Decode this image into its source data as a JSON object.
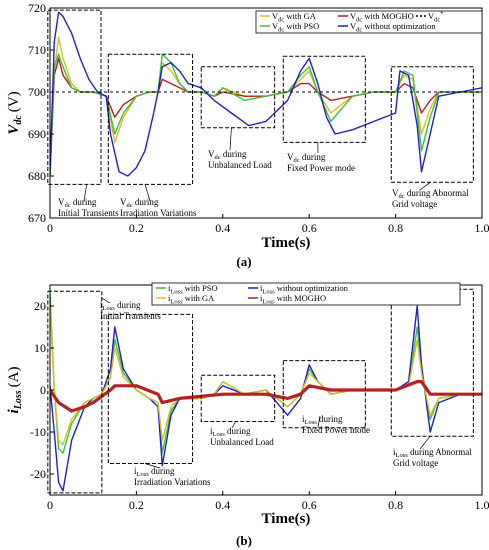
{
  "chart_data": [
    {
      "panel_label": "(a)",
      "type": "line",
      "ylabel": "V",
      "ylabel_sub": "dc",
      "ylabel_unit": "(V)",
      "xlabel": "Time(s)",
      "xlim": [
        0,
        1
      ],
      "ylim": [
        670,
        720
      ],
      "xticks": [
        "0",
        "0.2",
        "0.4",
        "0.6",
        "0.8",
        "1.0"
      ],
      "xtick_values": [
        0,
        0.2,
        0.4,
        0.6,
        0.8,
        1.0
      ],
      "yticks": [
        "670",
        "680",
        "690",
        "700",
        "710",
        "720"
      ],
      "ytick_values": [
        670,
        680,
        690,
        700,
        710,
        720
      ],
      "legend_position": "top-right",
      "series": [
        {
          "name": "V_dc with GA",
          "legend_main": "V",
          "legend_sub": "dc",
          "legend_rest": " with GA",
          "color": "#d4c21e",
          "x": [
            0,
            0.01,
            0.02,
            0.03,
            0.05,
            0.07,
            0.1,
            0.13,
            0.15,
            0.17,
            0.2,
            0.23,
            0.25,
            0.26,
            0.28,
            0.3,
            0.32,
            0.35,
            0.38,
            0.4,
            0.45,
            0.5,
            0.55,
            0.58,
            0.6,
            0.62,
            0.65,
            0.7,
            0.75,
            0.8,
            0.82,
            0.84,
            0.86,
            0.88,
            0.9,
            0.95,
            1.0
          ],
          "y": [
            680,
            705,
            713,
            708,
            702,
            700,
            700,
            699,
            688,
            694,
            699,
            700,
            700,
            707,
            705,
            702,
            700,
            700,
            699,
            701,
            699,
            699,
            700,
            703,
            705,
            700,
            695,
            699,
            700,
            700,
            704,
            703,
            690,
            696,
            700,
            700,
            700
          ]
        },
        {
          "name": "V_dc with MOGHO",
          "legend_main": "V",
          "legend_sub": "dc",
          "legend_rest": " with MOGHO",
          "color": "#b52020",
          "x": [
            0,
            0.01,
            0.02,
            0.03,
            0.05,
            0.07,
            0.1,
            0.13,
            0.15,
            0.17,
            0.2,
            0.23,
            0.25,
            0.26,
            0.28,
            0.3,
            0.32,
            0.35,
            0.38,
            0.4,
            0.45,
            0.5,
            0.55,
            0.58,
            0.6,
            0.62,
            0.65,
            0.7,
            0.75,
            0.8,
            0.82,
            0.84,
            0.86,
            0.88,
            0.9,
            0.95,
            1.0
          ],
          "y": [
            680,
            704,
            708,
            704,
            701,
            700,
            700,
            699,
            694,
            697,
            699,
            700,
            700,
            703,
            702,
            701,
            700,
            700,
            699,
            700,
            699,
            699,
            700,
            702,
            702,
            700,
            698,
            699,
            700,
            700,
            702,
            701,
            695,
            698,
            700,
            700,
            700
          ]
        },
        {
          "name": "V_dc with PSO",
          "legend_main": "V",
          "legend_sub": "dc",
          "legend_rest": " with PSO",
          "color": "#3fbf3f",
          "x": [
            0,
            0.01,
            0.02,
            0.03,
            0.05,
            0.07,
            0.1,
            0.13,
            0.15,
            0.17,
            0.2,
            0.23,
            0.25,
            0.26,
            0.28,
            0.3,
            0.32,
            0.35,
            0.38,
            0.4,
            0.45,
            0.5,
            0.55,
            0.58,
            0.6,
            0.62,
            0.65,
            0.7,
            0.75,
            0.8,
            0.82,
            0.84,
            0.86,
            0.88,
            0.9,
            0.95,
            1.0
          ],
          "y": [
            680,
            706,
            709,
            706,
            701,
            700,
            700,
            699,
            690,
            695,
            699,
            700,
            700,
            709,
            707,
            702,
            700,
            700,
            699,
            701,
            698,
            699,
            700,
            704,
            706,
            700,
            693,
            699,
            700,
            700,
            705,
            704,
            686,
            694,
            700,
            700,
            700
          ]
        },
        {
          "name": "V_dc without optimization",
          "legend_main": "V",
          "legend_sub": "dc",
          "legend_rest": " without optimization",
          "color": "#2020c8",
          "x": [
            0,
            0.01,
            0.02,
            0.03,
            0.05,
            0.07,
            0.09,
            0.11,
            0.13,
            0.14,
            0.16,
            0.18,
            0.2,
            0.22,
            0.24,
            0.25,
            0.26,
            0.28,
            0.3,
            0.32,
            0.35,
            0.38,
            0.42,
            0.46,
            0.5,
            0.55,
            0.58,
            0.6,
            0.62,
            0.64,
            0.66,
            0.7,
            0.75,
            0.8,
            0.81,
            0.83,
            0.85,
            0.86,
            0.88,
            0.9,
            0.95,
            1.0
          ],
          "y": [
            681,
            712,
            719,
            718,
            714,
            708,
            703,
            700,
            699,
            690,
            681,
            680,
            682,
            686,
            695,
            700,
            706,
            707,
            705,
            702,
            701,
            698,
            695,
            692,
            693,
            698,
            705,
            708,
            702,
            694,
            690,
            691,
            693,
            695,
            705,
            704,
            692,
            681,
            690,
            699,
            700,
            701
          ]
        },
        {
          "name": "V_dc*",
          "legend_main": "V",
          "legend_sub": "dc",
          "legend_sup": "*",
          "legend_rest": "",
          "color": "#000000",
          "dashed": true,
          "x": [
            0,
            1.0
          ],
          "y": [
            700,
            700
          ]
        }
      ],
      "annotations": [
        {
          "lines": [
            "V_dc during",
            "Initial Transients"
          ]
        },
        {
          "lines": [
            "V_dc during",
            "Irradiation Variations"
          ]
        },
        {
          "lines": [
            "V_dc during",
            "Unbalanced Load"
          ]
        },
        {
          "lines": [
            "V_dc during",
            "Fixed Power mode"
          ]
        },
        {
          "lines": [
            "V_dc during Abnormal",
            "Grid voltage"
          ]
        }
      ]
    },
    {
      "panel_label": "(b)",
      "type": "line",
      "ylabel": "i",
      "ylabel_sub": "Loss",
      "ylabel_unit": "(A)",
      "xlabel": "Time(s)",
      "xlim": [
        0,
        1
      ],
      "ylim": [
        -25,
        25
      ],
      "xticks": [
        "0",
        "0.2",
        "0.4",
        "0.6",
        "0.8",
        "1.0"
      ],
      "xtick_values": [
        0,
        0.2,
        0.4,
        0.6,
        0.8,
        1.0
      ],
      "yticks": [
        "-20",
        "-10",
        "0",
        "10",
        "20"
      ],
      "ytick_values": [
        -20,
        -10,
        0,
        10,
        20
      ],
      "legend_position": "top-right",
      "series": [
        {
          "name": "i_Loss with PSO",
          "legend_main": "i",
          "legend_sub": "Loss",
          "legend_rest": " with PSO",
          "color": "#3fbf3f",
          "x": [
            0,
            0.01,
            0.02,
            0.03,
            0.05,
            0.08,
            0.1,
            0.12,
            0.14,
            0.15,
            0.17,
            0.2,
            0.23,
            0.25,
            0.26,
            0.28,
            0.3,
            0.35,
            0.38,
            0.4,
            0.45,
            0.5,
            0.55,
            0.58,
            0.6,
            0.62,
            0.65,
            0.7,
            0.75,
            0.8,
            0.83,
            0.85,
            0.86,
            0.88,
            0.9,
            0.95,
            1.0
          ],
          "y": [
            23,
            0,
            -14,
            -15,
            -8,
            -3,
            -2,
            -1,
            3,
            12,
            4,
            0,
            -2,
            -3,
            -15,
            -5,
            -2,
            -2,
            -1,
            2,
            -1,
            0,
            -4,
            -1,
            5,
            2,
            -1,
            0,
            0,
            0,
            1,
            15,
            5,
            -7,
            -2,
            -1,
            -1
          ]
        },
        {
          "name": "i_Loss without optimization",
          "legend_main": "i",
          "legend_sub": "Loss",
          "legend_rest": " without optimization",
          "color": "#2020c8",
          "x": [
            0,
            0.01,
            0.02,
            0.03,
            0.05,
            0.08,
            0.1,
            0.12,
            0.14,
            0.15,
            0.17,
            0.2,
            0.23,
            0.25,
            0.26,
            0.28,
            0.3,
            0.35,
            0.38,
            0.4,
            0.45,
            0.5,
            0.55,
            0.58,
            0.6,
            0.62,
            0.65,
            0.7,
            0.75,
            0.8,
            0.83,
            0.85,
            0.86,
            0.88,
            0.9,
            0.95,
            1.0
          ],
          "y": [
            1,
            -10,
            -22,
            -24,
            -12,
            -4,
            -2,
            -1,
            5,
            15,
            5,
            0,
            -2,
            -4,
            -18,
            -6,
            -2,
            -2,
            -1,
            1,
            -1,
            0,
            -6,
            -2,
            6,
            2,
            -1,
            0,
            0,
            0,
            2,
            20,
            6,
            -10,
            -3,
            -1,
            -1
          ]
        },
        {
          "name": "i_Loss with GA",
          "legend_main": "i",
          "legend_sub": "Loss",
          "legend_rest": " with GA",
          "color": "#d4c21e",
          "x": [
            0,
            0.01,
            0.02,
            0.03,
            0.05,
            0.08,
            0.1,
            0.12,
            0.14,
            0.15,
            0.17,
            0.2,
            0.23,
            0.25,
            0.26,
            0.28,
            0.3,
            0.35,
            0.38,
            0.4,
            0.45,
            0.5,
            0.55,
            0.58,
            0.6,
            0.62,
            0.65,
            0.7,
            0.75,
            0.8,
            0.83,
            0.85,
            0.86,
            0.88,
            0.9,
            0.95,
            1.0
          ],
          "y": [
            20,
            0,
            -12,
            -13,
            -7,
            -3,
            -2,
            -1,
            3,
            10,
            3,
            0,
            -2,
            -3,
            -12,
            -4,
            -2,
            -2,
            -1,
            2,
            -1,
            0,
            -4,
            -1,
            4,
            2,
            -1,
            0,
            0,
            0,
            1,
            12,
            4,
            -6,
            -2,
            -1,
            -1
          ]
        },
        {
          "name": "i_Loss with MOGHO",
          "legend_main": "i",
          "legend_sub": "Loss",
          "legend_rest": " with MOGHO",
          "color": "#b52020",
          "x": [
            0,
            0.02,
            0.05,
            0.08,
            0.1,
            0.14,
            0.15,
            0.2,
            0.25,
            0.26,
            0.3,
            0.4,
            0.5,
            0.55,
            0.58,
            0.6,
            0.65,
            0.75,
            0.8,
            0.85,
            0.86,
            0.88,
            0.9,
            1.0
          ],
          "y": [
            0,
            -3,
            -5,
            -4,
            -3,
            0,
            1,
            1,
            -1,
            -3,
            -2,
            -1,
            -1,
            -2,
            -1,
            1,
            0,
            0,
            0,
            2,
            2,
            -1,
            -1,
            -1
          ]
        }
      ],
      "annotations": [
        {
          "lines": [
            "i_Loss during",
            "Initial Transients"
          ]
        },
        {
          "lines": [
            "i_Loss during",
            "Irradiation Variations"
          ]
        },
        {
          "lines": [
            "i_Loss during",
            "Unbalanced Load"
          ]
        },
        {
          "lines": [
            "i_Loss during",
            "Fixed Power mode"
          ]
        },
        {
          "lines": [
            "i_Loss during Abnormal",
            "Grid voltage"
          ]
        }
      ]
    }
  ]
}
